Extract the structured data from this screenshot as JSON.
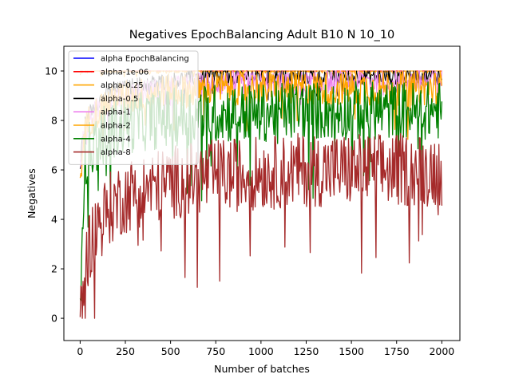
{
  "chart_data": {
    "type": "line",
    "title": "Negatives EpochBalancing Adult B10 N 10_10",
    "xlabel": "Number of batches",
    "ylabel": "Negatives",
    "xlim": [
      -90,
      2100
    ],
    "ylim": [
      -0.9,
      11.0
    ],
    "x_ticks": [
      0,
      250,
      500,
      750,
      1000,
      1250,
      1500,
      1750,
      2000
    ],
    "y_ticks": [
      0,
      2,
      4,
      6,
      8,
      10
    ],
    "x_tick_labels": [
      "0",
      "250",
      "500",
      "750",
      "1000",
      "1250",
      "1500",
      "1750",
      "2000"
    ],
    "y_tick_labels": [
      "0",
      "2",
      "4",
      "6",
      "8",
      "10"
    ],
    "grid": false,
    "legend_position": "top-left",
    "x": [
      0,
      10,
      25,
      50,
      100,
      150,
      200,
      300,
      400,
      500,
      600,
      700,
      800,
      900,
      1000,
      1100,
      1200,
      1300,
      1400,
      1500,
      1600,
      1700,
      1800,
      1900,
      2000
    ],
    "series": [
      {
        "name": "alpha EpochBalancing",
        "color": "#0000ff",
        "values": [
          10,
          10,
          10,
          10,
          10,
          10,
          10,
          10,
          10,
          10,
          10,
          10,
          10,
          10,
          10,
          10,
          10,
          10,
          10,
          10,
          10,
          10,
          10,
          10,
          10
        ]
      },
      {
        "name": "alpha-1e-06",
        "color": "#ff0000",
        "values": [
          10,
          10,
          10,
          10,
          10,
          10,
          10,
          10,
          10,
          10,
          10,
          10,
          10,
          10,
          10,
          10,
          10,
          10,
          10,
          10,
          10,
          10,
          10,
          10,
          10
        ]
      },
      {
        "name": "alpha-0.25",
        "color": "#ffa500",
        "values": [
          9.8,
          10,
          10,
          10,
          10,
          10,
          10,
          10,
          10,
          10,
          10,
          10,
          10,
          10,
          10,
          10,
          10,
          10,
          10,
          10,
          10,
          10,
          10,
          10,
          10
        ]
      },
      {
        "name": "alpha-0.5",
        "color": "#000000",
        "values": [
          6.0,
          7.0,
          7.8,
          8.3,
          8.8,
          9.0,
          9.2,
          9.4,
          9.5,
          9.6,
          9.7,
          9.8,
          9.8,
          9.8,
          9.8,
          9.8,
          9.8,
          9.8,
          9.8,
          9.8,
          9.8,
          9.8,
          9.8,
          9.8,
          9.8
        ]
      },
      {
        "name": "alpha-1",
        "color": "#ee82ee",
        "values": [
          6.0,
          7.0,
          7.6,
          8.0,
          8.5,
          8.8,
          9.0,
          9.1,
          9.2,
          9.3,
          9.4,
          9.5,
          9.5,
          9.5,
          9.5,
          9.5,
          9.5,
          9.5,
          9.6,
          9.6,
          9.6,
          9.6,
          9.6,
          9.6,
          9.6
        ]
      },
      {
        "name": "alpha-2",
        "color": "#ffa500",
        "values": [
          5.5,
          6.5,
          7.5,
          8.0,
          8.4,
          8.7,
          8.9,
          9.0,
          9.1,
          9.2,
          9.2,
          9.3,
          9.3,
          9.3,
          9.3,
          9.3,
          9.3,
          9.3,
          9.3,
          9.3,
          9.3,
          9.3,
          9.3,
          9.3,
          9.3
        ]
      },
      {
        "name": "alpha-4",
        "color": "#008000",
        "values": [
          0.5,
          4.0,
          6.0,
          6.8,
          7.2,
          7.5,
          7.7,
          7.9,
          8.0,
          8.1,
          8.2,
          8.3,
          8.3,
          8.3,
          8.3,
          8.4,
          8.4,
          8.4,
          8.4,
          8.4,
          8.4,
          8.4,
          8.4,
          8.4,
          8.4
        ]
      },
      {
        "name": "alpha-8",
        "color": "#a52a2a",
        "values": [
          0.0,
          0.5,
          1.8,
          3.0,
          3.8,
          4.3,
          4.7,
          5.1,
          5.3,
          5.5,
          5.6,
          5.7,
          5.8,
          5.8,
          5.9,
          5.9,
          6.0,
          6.0,
          6.0,
          6.0,
          6.0,
          6.0,
          6.0,
          6.0,
          6.0
        ]
      }
    ]
  }
}
